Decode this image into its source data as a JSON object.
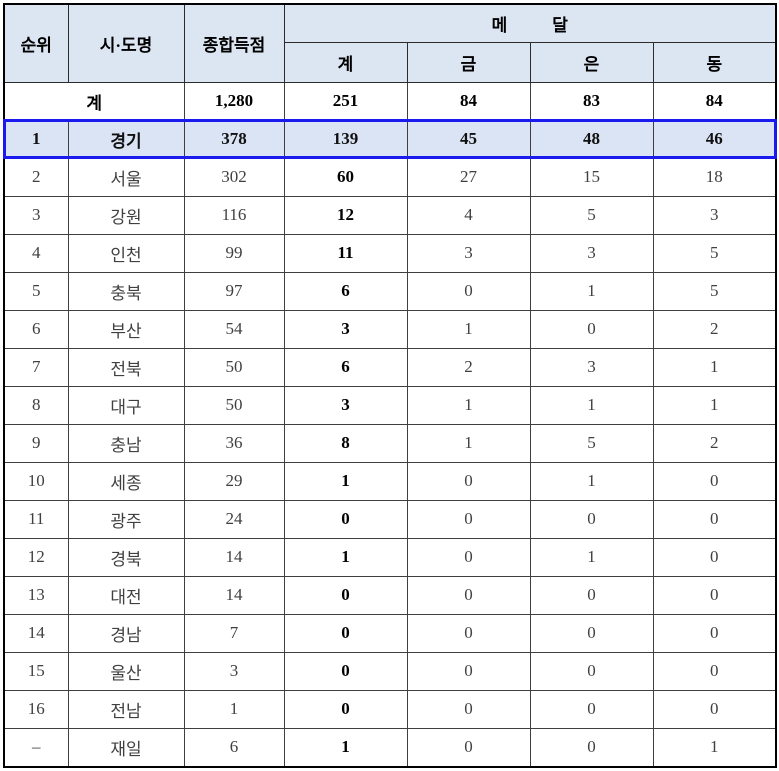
{
  "colors": {
    "header_bg": "#dce6f2",
    "highlight_bg": "#dbe4f4",
    "highlight_border": "#1a1aee",
    "outer_border": "#000000",
    "grid_line": "#3f3f3f",
    "regular_text": "#404040",
    "bold_text": "#000000"
  },
  "table": {
    "headers": {
      "rank": "순위",
      "region": "시·도명",
      "score": "종합득점",
      "medal": "메 달",
      "medal_total": "계",
      "gold": "금",
      "silver": "은",
      "bronze": "동"
    },
    "total": {
      "label": "계",
      "score": "1,280",
      "total": "251",
      "gold": "84",
      "silver": "83",
      "bronze": "84"
    },
    "rows": [
      {
        "rank": "1",
        "region": "경기",
        "score": "378",
        "total": "139",
        "gold": "45",
        "silver": "48",
        "bronze": "46",
        "highlight": true
      },
      {
        "rank": "2",
        "region": "서울",
        "score": "302",
        "total": "60",
        "gold": "27",
        "silver": "15",
        "bronze": "18"
      },
      {
        "rank": "3",
        "region": "강원",
        "score": "116",
        "total": "12",
        "gold": "4",
        "silver": "5",
        "bronze": "3"
      },
      {
        "rank": "4",
        "region": "인천",
        "score": "99",
        "total": "11",
        "gold": "3",
        "silver": "3",
        "bronze": "5"
      },
      {
        "rank": "5",
        "region": "충북",
        "score": "97",
        "total": "6",
        "gold": "0",
        "silver": "1",
        "bronze": "5"
      },
      {
        "rank": "6",
        "region": "부산",
        "score": "54",
        "total": "3",
        "gold": "1",
        "silver": "0",
        "bronze": "2"
      },
      {
        "rank": "7",
        "region": "전북",
        "score": "50",
        "total": "6",
        "gold": "2",
        "silver": "3",
        "bronze": "1"
      },
      {
        "rank": "8",
        "region": "대구",
        "score": "50",
        "total": "3",
        "gold": "1",
        "silver": "1",
        "bronze": "1"
      },
      {
        "rank": "9",
        "region": "충남",
        "score": "36",
        "total": "8",
        "gold": "1",
        "silver": "5",
        "bronze": "2"
      },
      {
        "rank": "10",
        "region": "세종",
        "score": "29",
        "total": "1",
        "gold": "0",
        "silver": "1",
        "bronze": "0"
      },
      {
        "rank": "11",
        "region": "광주",
        "score": "24",
        "total": "0",
        "gold": "0",
        "silver": "0",
        "bronze": "0"
      },
      {
        "rank": "12",
        "region": "경북",
        "score": "14",
        "total": "1",
        "gold": "0",
        "silver": "1",
        "bronze": "0"
      },
      {
        "rank": "13",
        "region": "대전",
        "score": "14",
        "total": "0",
        "gold": "0",
        "silver": "0",
        "bronze": "0"
      },
      {
        "rank": "14",
        "region": "경남",
        "score": "7",
        "total": "0",
        "gold": "0",
        "silver": "0",
        "bronze": "0"
      },
      {
        "rank": "15",
        "region": "울산",
        "score": "3",
        "total": "0",
        "gold": "0",
        "silver": "0",
        "bronze": "0"
      },
      {
        "rank": "16",
        "region": "전남",
        "score": "1",
        "total": "0",
        "gold": "0",
        "silver": "0",
        "bronze": "0"
      },
      {
        "rank": "–",
        "region": "재일",
        "score": "6",
        "total": "1",
        "gold": "0",
        "silver": "0",
        "bronze": "1"
      }
    ]
  }
}
